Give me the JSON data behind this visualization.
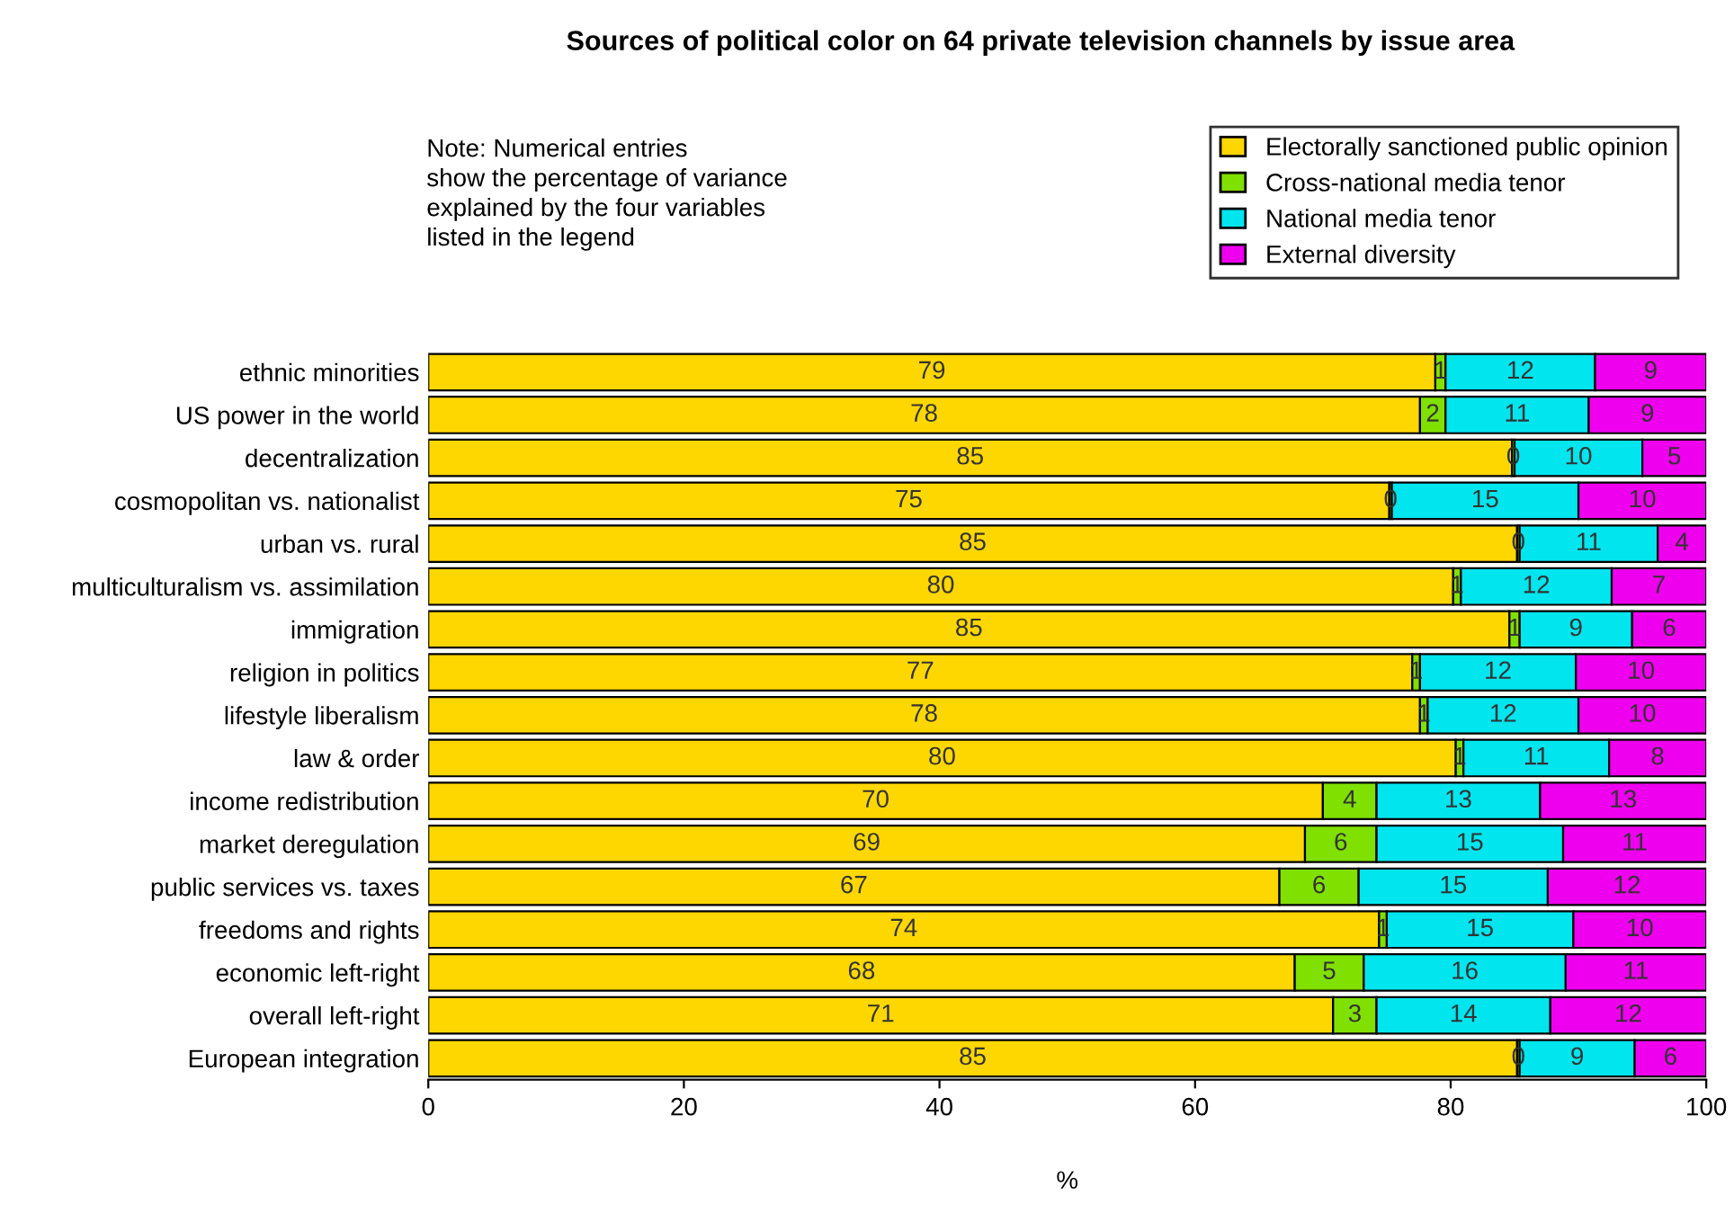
{
  "chart_data": {
    "type": "bar",
    "orientation": "horizontal",
    "stacked": true,
    "title": "Sources of political color on 64 private television channels by issue area",
    "xlabel": "%",
    "categories": [
      "ethnic minorities",
      "US power in the world",
      "decentralization",
      "cosmopolitan vs. nationalist",
      "urban vs. rural",
      "multiculturalism vs. assimilation",
      "immigration",
      "religion in politics",
      "lifestyle liberalism",
      "law & order",
      "income redistribution",
      "market deregulation",
      "public services vs. taxes",
      "freedoms and rights",
      "economic left-right",
      "overall left-right",
      "European integration"
    ],
    "series": [
      {
        "name": "Electorally sanctioned public opinion",
        "color": "#ffd700",
        "values": [
          78.8,
          77.6,
          84.8,
          75.2,
          85.2,
          80.2,
          84.6,
          77.0,
          77.6,
          80.4,
          70.0,
          68.6,
          66.6,
          74.4,
          67.8,
          70.8,
          85.2
        ],
        "value_labels": [
          "79",
          "78",
          "85",
          "75",
          "85",
          "80",
          "85",
          "77",
          "78",
          "80",
          "70",
          "69",
          "67",
          "74",
          "68",
          "71",
          "85"
        ]
      },
      {
        "name": "Cross-national media tenor",
        "color": "#80e000",
        "values": [
          0.8,
          2.0,
          0.2,
          0.2,
          0.2,
          0.6,
          0.8,
          0.6,
          0.6,
          0.6,
          4.2,
          5.6,
          6.2,
          0.6,
          5.4,
          3.4,
          0.2
        ],
        "value_labels": [
          "1",
          "2",
          "0",
          "0",
          "0",
          "1",
          "1",
          "1",
          "1",
          "1",
          "4",
          "6",
          "6",
          "1",
          "5",
          "3",
          "0"
        ]
      },
      {
        "name": "National media tenor",
        "color": "#00e5ee",
        "values": [
          11.7,
          11.2,
          10.0,
          14.6,
          10.8,
          11.8,
          8.8,
          12.2,
          11.8,
          11.4,
          12.8,
          14.6,
          14.8,
          14.6,
          15.8,
          13.6,
          9.0
        ],
        "value_labels": [
          "12",
          "11",
          "10",
          "15",
          "11",
          "12",
          "9",
          "12",
          "12",
          "11",
          "13",
          "15",
          "15",
          "15",
          "16",
          "14",
          "9"
        ]
      },
      {
        "name": "External diversity",
        "color": "#ee00ee",
        "values": [
          8.7,
          9.2,
          5.0,
          10.0,
          3.8,
          7.4,
          5.8,
          10.2,
          10.0,
          7.6,
          13.0,
          11.2,
          12.4,
          10.4,
          11.0,
          12.2,
          5.6
        ],
        "value_labels": [
          "9",
          "9",
          "5",
          "10",
          "4",
          "7",
          "6",
          "10",
          "10",
          "8",
          "13",
          "11",
          "12",
          "10",
          "11",
          "12",
          "6"
        ]
      }
    ],
    "xlim": [
      0,
      100
    ],
    "xticks": [
      0,
      20,
      40,
      60,
      80,
      100
    ],
    "legend": "top right",
    "grid": false,
    "annotations": [
      "Note: Numerical entries\nshow the percentage of variance\nexplained by the four variables\nlisted in the legend"
    ]
  }
}
